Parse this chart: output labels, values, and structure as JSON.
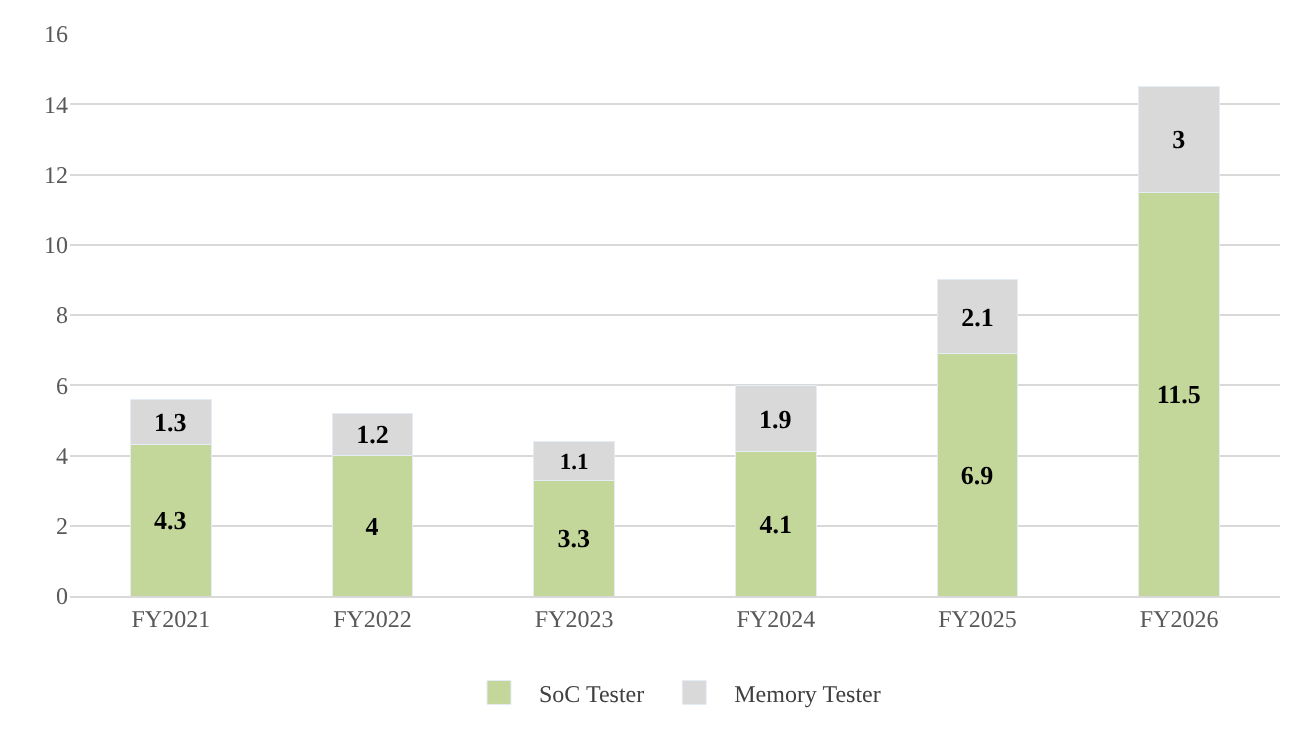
{
  "chart_data": {
    "type": "bar",
    "stacked": true,
    "categories": [
      "FY2021",
      "FY2022",
      "FY2023",
      "FY2024",
      "FY2025",
      "FY2026"
    ],
    "series": [
      {
        "name": "SoC Tester",
        "color": "#c4d79b",
        "values": [
          4.3,
          4,
          3.3,
          4.1,
          6.9,
          11.5
        ]
      },
      {
        "name": "Memory Tester",
        "color": "#d9d9d9",
        "values": [
          1.3,
          1.2,
          1.1,
          1.9,
          2.1,
          3
        ]
      }
    ],
    "ylim": [
      0,
      16
    ],
    "yticks": [
      0,
      2,
      4,
      6,
      8,
      10,
      12,
      14,
      16
    ],
    "grid": "y",
    "legend": "bottom",
    "data_labels": true
  }
}
